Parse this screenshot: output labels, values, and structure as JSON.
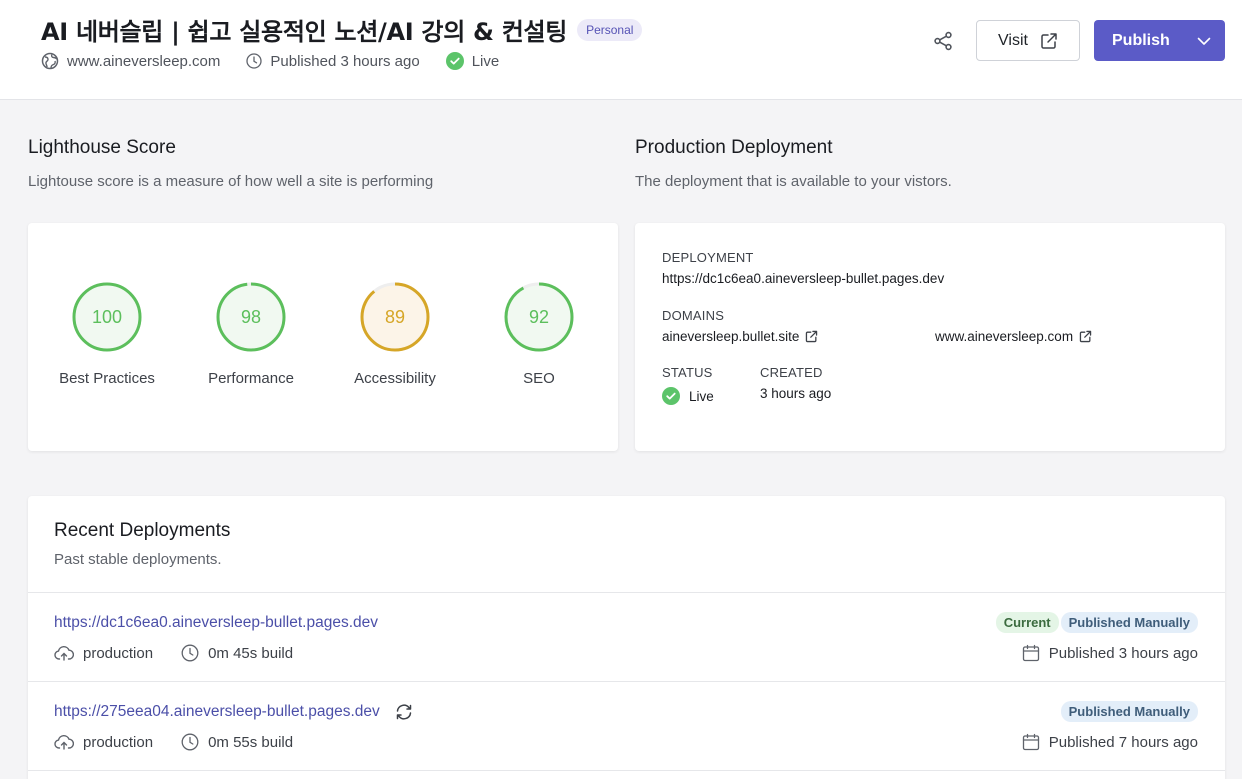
{
  "header": {
    "title": "AI 네버슬립 | 쉽고 실용적인 노션/AI 강의 & 컨설팅",
    "badge": "Personal",
    "domain": "www.aineversleep.com",
    "published": "Published 3 hours ago",
    "status": "Live",
    "visit_label": "Visit",
    "publish_label": "Publish"
  },
  "lighthouse": {
    "title": "Lighthouse Score",
    "subtitle": "Lightouse score is a measure of how well a site is performing",
    "scores": [
      {
        "label": "Best Practices",
        "value": 100,
        "color": "#5cbf5c",
        "bg": "#f1f9f1"
      },
      {
        "label": "Performance",
        "value": 98,
        "color": "#5cbf5c",
        "bg": "#f1f9f1"
      },
      {
        "label": "Accessibility",
        "value": 89,
        "color": "#d6a627",
        "bg": "#fcf4e8"
      },
      {
        "label": "SEO",
        "value": 92,
        "color": "#5cbf5c",
        "bg": "#f1f9f1"
      }
    ]
  },
  "production": {
    "title": "Production Deployment",
    "subtitle": "The deployment that is available to your vistors.",
    "deployment_label": "DEPLOYMENT",
    "deployment_url": "https://dc1c6ea0.aineversleep-bullet.pages.dev",
    "domains_label": "DOMAINS",
    "domains": [
      "aineversleep.bullet.site",
      "www.aineversleep.com"
    ],
    "status_label": "STATUS",
    "status_value": "Live",
    "created_label": "CREATED",
    "created_value": "3 hours ago"
  },
  "recent": {
    "title": "Recent Deployments",
    "subtitle": "Past stable deployments.",
    "deployments": [
      {
        "url": "https://dc1c6ea0.aineversleep-bullet.pages.dev",
        "env": "production",
        "build": "0m 45s build",
        "tags": [
          "Current",
          "Published Manually"
        ],
        "published": "Published 3 hours ago"
      },
      {
        "url": "https://275eea04.aineversleep-bullet.pages.dev",
        "env": "production",
        "build": "0m 55s build",
        "tags": [
          "Published Manually"
        ],
        "published": "Published 7 hours ago"
      }
    ]
  },
  "colors": {
    "accent": "#5b5bc7",
    "live_green": "#5cc46a",
    "link": "#4b4fa8"
  }
}
